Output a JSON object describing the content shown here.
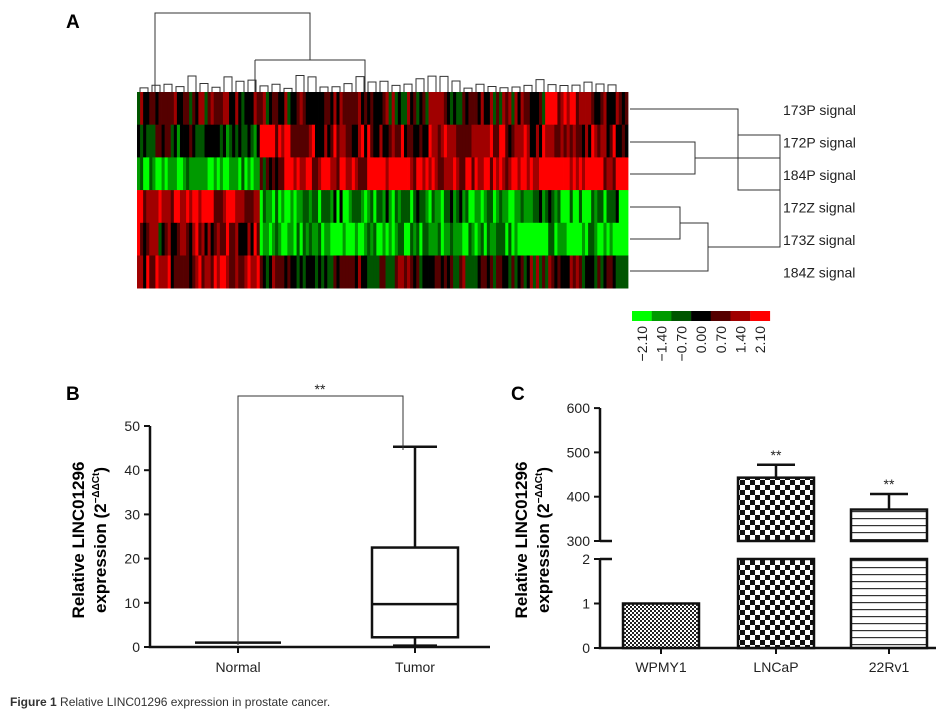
{
  "caption": {
    "label": "Figure 1",
    "text": "Relative LINC01296 expression in prostate cancer."
  },
  "chart_data": [
    {
      "panel": "A",
      "type": "heatmap",
      "rows": [
        "173P signal",
        "172P signal",
        "184P signal",
        "172Z signal",
        "173Z signal",
        "184Z signal"
      ],
      "colorscale": {
        "ticks": [
          "−2.10",
          "−1.40",
          "−0.70",
          "0.00",
          "0.70",
          "1.40",
          "2.10"
        ],
        "colors": [
          "#00ff00",
          "#009a00",
          "#005500",
          "#000000",
          "#550000",
          "#a00000",
          "#ff0000"
        ]
      }
    },
    {
      "panel": "B",
      "type": "box",
      "ylabel_line1": "Relative LINC01296",
      "ylabel_line2": "expression (2",
      "ylabel_sup": "−ΔΔCt",
      "ylim": [
        0,
        50
      ],
      "yticks": [
        "0",
        "10",
        "20",
        "30",
        "40",
        "50"
      ],
      "categories": [
        "Normal",
        "Tumor"
      ],
      "boxes": [
        {
          "name": "Normal",
          "min": 1,
          "q1": 1,
          "median": 1,
          "q3": 1,
          "max": 1
        },
        {
          "name": "Tumor",
          "min": 0.3,
          "q1": 2.2,
          "median": 9.7,
          "q3": 22.5,
          "max": 45.3
        }
      ],
      "annotation": "**"
    },
    {
      "panel": "C",
      "type": "bar",
      "ylabel_line1": "Relative LINC01296",
      "ylabel_line2": "expression (2",
      "ylabel_sup": "−ΔΔCt",
      "broken_axis": {
        "lower": [
          0,
          2
        ],
        "upper": [
          300,
          600
        ]
      },
      "yticks_lower": [
        "0",
        "1",
        "2"
      ],
      "yticks_upper": [
        "300",
        "400",
        "500",
        "600"
      ],
      "categories": [
        "WPMY1",
        "LNCaP",
        "22Rv1"
      ],
      "values": [
        1,
        443,
        371
      ],
      "errors": [
        0,
        29,
        35
      ],
      "annotations": [
        "",
        "**",
        "**"
      ]
    }
  ]
}
